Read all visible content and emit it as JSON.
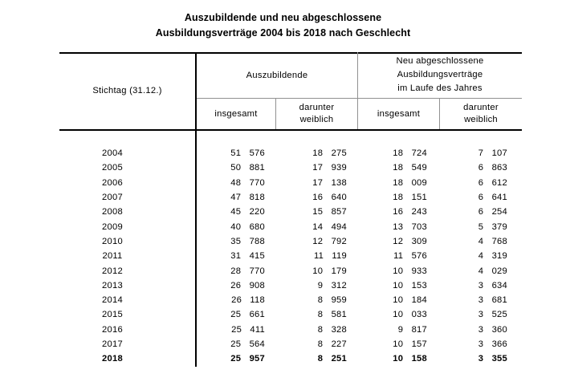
{
  "title": {
    "line1": "Auszubildende und neu abgeschlossene",
    "line2": "Ausbildungsverträge 2004 bis 2018 nach Geschlecht"
  },
  "table": {
    "header": {
      "row_label": "Stichtag (31.12.)",
      "group_auszubildende": "Auszubildende",
      "group_neu_line1": "Neu abgeschlossene",
      "group_neu_line2": "Ausbildungsverträge",
      "group_neu_line3": "im Laufe des Jahres",
      "sub_total_1": "insgesamt",
      "sub_female_1_line1": "darunter",
      "sub_female_1_line2": "weiblich",
      "sub_total_2": "insgesamt",
      "sub_female_2_line1": "darunter",
      "sub_female_2_line2": "weiblich"
    },
    "rows": [
      {
        "year": "2004",
        "azubi_total": "51 576",
        "azubi_female": "18 275",
        "neu_total": "18 724",
        "neu_female": "7 107",
        "bold": false
      },
      {
        "year": "2005",
        "azubi_total": "50 881",
        "azubi_female": "17 939",
        "neu_total": "18 549",
        "neu_female": "6 863",
        "bold": false
      },
      {
        "year": "2006",
        "azubi_total": "48 770",
        "azubi_female": "17 138",
        "neu_total": "18 009",
        "neu_female": "6 612",
        "bold": false
      },
      {
        "year": "2007",
        "azubi_total": "47 818",
        "azubi_female": "16 640",
        "neu_total": "18 151",
        "neu_female": "6 641",
        "bold": false
      },
      {
        "year": "2008",
        "azubi_total": "45 220",
        "azubi_female": "15 857",
        "neu_total": "16 243",
        "neu_female": "6 254",
        "bold": false
      },
      {
        "year": "2009",
        "azubi_total": "40 680",
        "azubi_female": "14 494",
        "neu_total": "13 703",
        "neu_female": "5 379",
        "bold": false
      },
      {
        "year": "2010",
        "azubi_total": "35 788",
        "azubi_female": "12 792",
        "neu_total": "12 309",
        "neu_female": "4 768",
        "bold": false
      },
      {
        "year": "2011",
        "azubi_total": "31 415",
        "azubi_female": "11 119",
        "neu_total": "11 576",
        "neu_female": "4 319",
        "bold": false
      },
      {
        "year": "2012",
        "azubi_total": "28 770",
        "azubi_female": "10 179",
        "neu_total": "10 933",
        "neu_female": "4 029",
        "bold": false
      },
      {
        "year": "2013",
        "azubi_total": "26 908",
        "azubi_female": "9 312",
        "neu_total": "10 153",
        "neu_female": "3 634",
        "bold": false
      },
      {
        "year": "2014",
        "azubi_total": "26 118",
        "azubi_female": "8 959",
        "neu_total": "10 184",
        "neu_female": "3 681",
        "bold": false
      },
      {
        "year": "2015",
        "azubi_total": "25 661",
        "azubi_female": "8 581",
        "neu_total": "10 033",
        "neu_female": "3 525",
        "bold": false
      },
      {
        "year": "2016",
        "azubi_total": "25 411",
        "azubi_female": "8 328",
        "neu_total": "9 817",
        "neu_female": "3 360",
        "bold": false
      },
      {
        "year": "2017",
        "azubi_total": "25 564",
        "azubi_female": "8 227",
        "neu_total": "10 157",
        "neu_female": "3 366",
        "bold": false
      },
      {
        "year": "2018",
        "azubi_total": "25 957",
        "azubi_female": "8 251",
        "neu_total": "10 158",
        "neu_female": "3 355",
        "bold": true
      }
    ]
  },
  "colors": {
    "text": "#000000",
    "line_strong": "#000000",
    "line_light": "#919191",
    "background": "#ffffff"
  }
}
